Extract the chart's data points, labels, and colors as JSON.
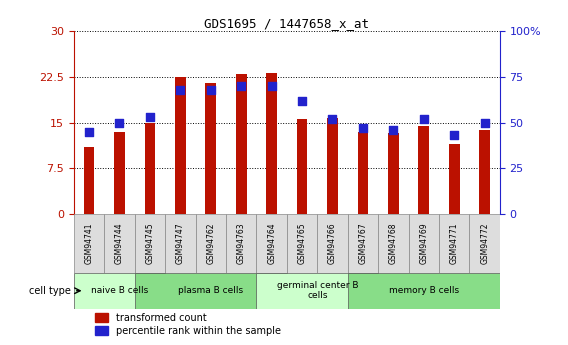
{
  "title": "GDS1695 / 1447658_x_at",
  "samples": [
    "GSM94741",
    "GSM94744",
    "GSM94745",
    "GSM94747",
    "GSM94762",
    "GSM94763",
    "GSM94764",
    "GSM94765",
    "GSM94766",
    "GSM94767",
    "GSM94768",
    "GSM94769",
    "GSM94771",
    "GSM94772"
  ],
  "transformed_count": [
    11.0,
    13.5,
    15.0,
    22.5,
    21.5,
    23.0,
    23.2,
    15.5,
    15.8,
    13.5,
    13.2,
    14.5,
    11.5,
    13.7
  ],
  "percentile_rank": [
    45,
    50,
    53,
    68,
    68,
    70,
    70,
    62,
    52,
    47,
    46,
    52,
    43,
    50
  ],
  "cell_types": [
    {
      "label": "naive B cells",
      "start": 0,
      "end": 2,
      "color": "#ccffcc"
    },
    {
      "label": "plasma B cells",
      "start": 2,
      "end": 6,
      "color": "#88dd88"
    },
    {
      "label": "germinal center B\ncells",
      "start": 6,
      "end": 9,
      "color": "#ccffcc"
    },
    {
      "label": "memory B cells",
      "start": 9,
      "end": 13,
      "color": "#88dd88"
    }
  ],
  "ylim_left": [
    0,
    30
  ],
  "ylim_right": [
    0,
    100
  ],
  "yticks_left": [
    0,
    7.5,
    15,
    22.5,
    30
  ],
  "yticks_right": [
    0,
    25,
    50,
    75,
    100
  ],
  "ytick_labels_right": [
    "0",
    "25",
    "50",
    "75",
    "100%"
  ],
  "bar_color": "#bb1100",
  "dot_color": "#2222cc",
  "background_color": "#ffffff",
  "bar_width": 0.35,
  "dot_size": 30
}
